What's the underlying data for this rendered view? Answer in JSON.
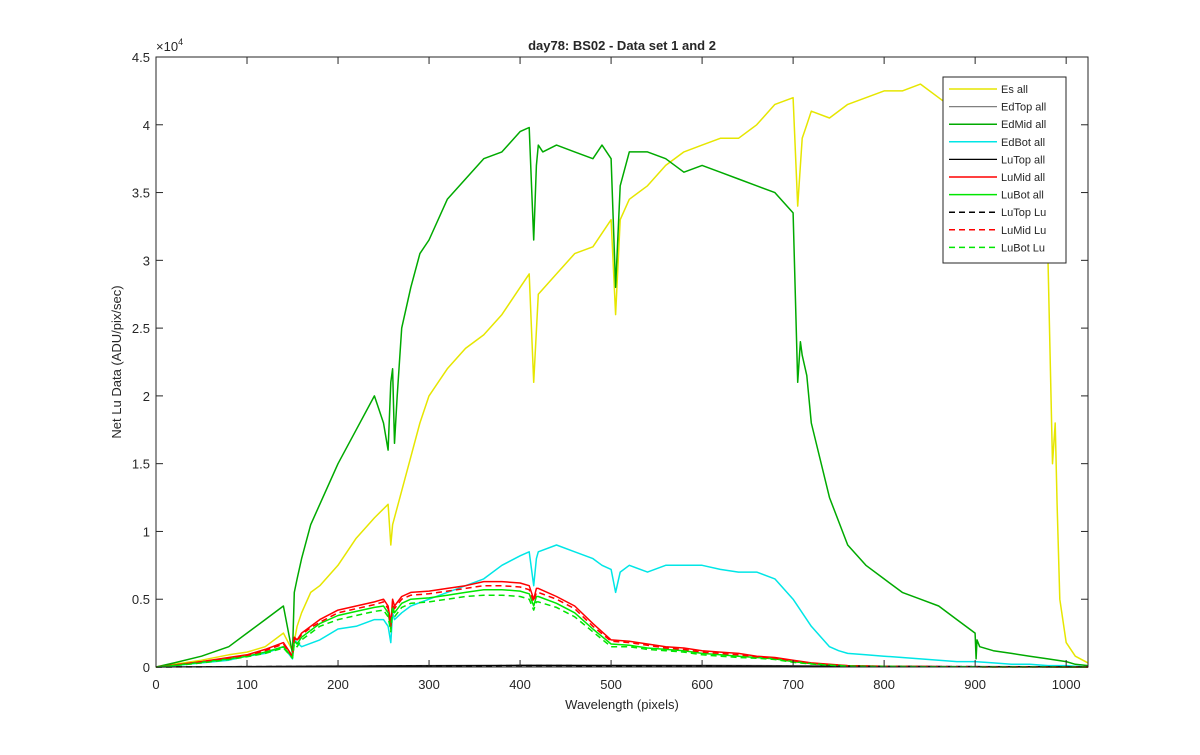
{
  "chart_data": {
    "type": "line",
    "title": "day78: BS02 - Data set 1 and 2",
    "xlabel": "Wavelength (pixels)",
    "ylabel": "Net Lu Data (ADU/pix/sec)",
    "xlim": [
      0,
      1024
    ],
    "ylim": [
      0,
      45000
    ],
    "x_ticks": [
      "0",
      "100",
      "200",
      "300",
      "400",
      "500",
      "600",
      "700",
      "800",
      "900",
      "1000"
    ],
    "y_ticks": [
      "0",
      "0.5",
      "1",
      "1.5",
      "2",
      "2.5",
      "3",
      "3.5",
      "4",
      "4.5"
    ],
    "y_exponent_base": "×10",
    "y_exponent": "4",
    "grid": false,
    "legend_position": "top-right",
    "series": [
      {
        "name": "Es  all",
        "color": "#e6e600",
        "dash": "solid",
        "width": 1.5,
        "x": [
          0,
          20,
          50,
          80,
          100,
          120,
          140,
          150,
          155,
          160,
          170,
          180,
          200,
          220,
          240,
          255,
          258,
          260,
          270,
          280,
          290,
          300,
          320,
          340,
          360,
          380,
          400,
          410,
          415,
          420,
          440,
          460,
          480,
          500,
          505,
          510,
          520,
          540,
          560,
          580,
          600,
          620,
          640,
          660,
          680,
          700,
          705,
          710,
          715,
          720,
          740,
          760,
          780,
          800,
          820,
          840,
          860,
          880,
          900,
          920,
          940,
          960,
          975,
          980,
          983,
          985,
          988,
          990,
          993,
          1000,
          1010,
          1024
        ],
        "y": [
          0,
          200,
          500,
          900,
          1100,
          1500,
          2500,
          1200,
          3000,
          4000,
          5500,
          6000,
          7500,
          9500,
          11000,
          12000,
          9000,
          10500,
          13000,
          15500,
          18000,
          20000,
          22000,
          23500,
          24500,
          26000,
          28000,
          29000,
          21000,
          27500,
          29000,
          30500,
          31000,
          33000,
          26000,
          33000,
          34500,
          35500,
          37000,
          38000,
          38500,
          39000,
          39000,
          40000,
          41500,
          42000,
          34000,
          39000,
          40000,
          41000,
          40500,
          41500,
          42000,
          42500,
          42500,
          43000,
          42000,
          41000,
          41500,
          40500,
          41500,
          41000,
          37000,
          30000,
          21000,
          15000,
          18000,
          12000,
          5000,
          1800,
          800,
          300
        ]
      },
      {
        "name": "EdTop  all",
        "color": "#808080",
        "dash": "solid",
        "width": 1.2,
        "x": [
          0,
          200,
          400,
          600,
          800,
          1024
        ],
        "y": [
          0,
          80,
          150,
          130,
          60,
          20
        ]
      },
      {
        "name": "EdMid  all",
        "color": "#00aa00",
        "dash": "solid",
        "width": 1.5,
        "x": [
          0,
          20,
          50,
          80,
          100,
          120,
          140,
          150,
          152,
          155,
          160,
          170,
          180,
          200,
          220,
          240,
          250,
          255,
          258,
          260,
          262,
          265,
          270,
          280,
          290,
          300,
          320,
          340,
          360,
          380,
          400,
          410,
          415,
          418,
          420,
          425,
          440,
          460,
          480,
          490,
          500,
          505,
          510,
          520,
          540,
          560,
          580,
          600,
          620,
          640,
          660,
          680,
          700,
          705,
          708,
          710,
          715,
          720,
          740,
          760,
          780,
          800,
          820,
          840,
          860,
          880,
          900,
          901,
          902,
          905,
          920,
          940,
          960,
          980,
          1000,
          1010,
          1024
        ],
        "y": [
          0,
          300,
          800,
          1500,
          2500,
          3500,
          4500,
          1000,
          5500,
          6500,
          8000,
          10500,
          12000,
          15000,
          17500,
          20000,
          18000,
          16000,
          21000,
          22000,
          16500,
          20000,
          25000,
          28000,
          30500,
          31500,
          34500,
          36000,
          37500,
          38000,
          39500,
          39800,
          31500,
          37000,
          38500,
          38000,
          38500,
          38000,
          37500,
          38500,
          37500,
          28000,
          35500,
          38000,
          38000,
          37500,
          36500,
          37000,
          36500,
          36000,
          35500,
          35000,
          33500,
          21000,
          24000,
          23000,
          21500,
          18000,
          12500,
          9000,
          7500,
          6500,
          5500,
          5000,
          4500,
          3500,
          2500,
          600,
          2000,
          1500,
          1200,
          1000,
          800,
          600,
          400,
          200,
          100
        ]
      },
      {
        "name": "EdBot  all",
        "color": "#00e6e6",
        "dash": "solid",
        "width": 1.5,
        "x": [
          0,
          20,
          50,
          80,
          100,
          120,
          140,
          150,
          152,
          155,
          160,
          180,
          200,
          220,
          240,
          250,
          255,
          258,
          260,
          262,
          270,
          280,
          300,
          320,
          340,
          360,
          380,
          400,
          410,
          415,
          418,
          420,
          440,
          460,
          480,
          490,
          500,
          505,
          510,
          520,
          540,
          560,
          580,
          600,
          620,
          640,
          660,
          680,
          700,
          720,
          740,
          750,
          760,
          780,
          800,
          820,
          840,
          860,
          880,
          900,
          920,
          940,
          960,
          980,
          1000,
          1010,
          1024
        ],
        "y": [
          0,
          100,
          300,
          500,
          800,
          1000,
          1500,
          600,
          2000,
          1800,
          1500,
          2000,
          2800,
          3000,
          3500,
          3500,
          3000,
          1800,
          4000,
          3500,
          4000,
          4500,
          5000,
          5500,
          6000,
          6500,
          7500,
          8200,
          8500,
          6000,
          8000,
          8500,
          9000,
          8500,
          8000,
          7500,
          7200,
          5500,
          7000,
          7500,
          7000,
          7500,
          7500,
          7500,
          7200,
          7000,
          7000,
          6500,
          5000,
          3000,
          1500,
          1200,
          1000,
          900,
          800,
          700,
          600,
          500,
          400,
          400,
          300,
          200,
          200,
          100,
          100,
          50,
          0
        ]
      },
      {
        "name": "LuTop  all",
        "color": "#000000",
        "dash": "solid",
        "width": 1.2,
        "x": [
          0,
          200,
          400,
          600,
          800,
          1024
        ],
        "y": [
          0,
          60,
          110,
          90,
          40,
          10
        ]
      },
      {
        "name": "LuMid  all",
        "color": "#ff0000",
        "dash": "solid",
        "width": 1.5,
        "x": [
          0,
          20,
          50,
          80,
          100,
          120,
          140,
          150,
          152,
          155,
          160,
          170,
          180,
          200,
          220,
          240,
          250,
          255,
          258,
          260,
          262,
          270,
          280,
          300,
          320,
          340,
          360,
          380,
          400,
          410,
          415,
          418,
          420,
          440,
          460,
          480,
          500,
          520,
          540,
          560,
          580,
          600,
          620,
          640,
          660,
          680,
          700,
          720,
          740,
          760,
          780,
          800,
          820,
          840,
          860,
          880,
          900,
          920,
          940,
          960,
          980,
          1000,
          1024
        ],
        "y": [
          0,
          150,
          400,
          700,
          900,
          1300,
          1800,
          800,
          2200,
          2000,
          2500,
          3000,
          3500,
          4200,
          4500,
          4800,
          5000,
          4500,
          3200,
          5000,
          4500,
          5200,
          5500,
          5600,
          5800,
          6000,
          6300,
          6300,
          6200,
          6000,
          5000,
          5800,
          5800,
          5200,
          4500,
          3200,
          2000,
          1900,
          1700,
          1500,
          1400,
          1200,
          1100,
          1000,
          800,
          700,
          500,
          300,
          200,
          100,
          80,
          60,
          50,
          40,
          30,
          20,
          20,
          10,
          10,
          5,
          5,
          0,
          0
        ]
      },
      {
        "name": "LuBot  all",
        "color": "#00e600",
        "dash": "solid",
        "width": 1.5,
        "x": [
          0,
          20,
          50,
          80,
          100,
          120,
          140,
          150,
          152,
          155,
          160,
          170,
          180,
          200,
          220,
          240,
          250,
          255,
          258,
          260,
          262,
          270,
          280,
          300,
          320,
          340,
          360,
          380,
          400,
          410,
          415,
          418,
          420,
          440,
          460,
          480,
          500,
          520,
          540,
          560,
          580,
          600,
          620,
          640,
          660,
          680,
          700,
          720,
          740,
          760,
          780,
          800,
          820,
          840,
          860,
          880,
          900,
          920,
          940,
          960,
          980,
          1000,
          1024
        ],
        "y": [
          0,
          120,
          350,
          600,
          800,
          1100,
          1500,
          700,
          1900,
          1700,
          2200,
          2700,
          3200,
          3800,
          4100,
          4400,
          4500,
          4000,
          2800,
          4500,
          4000,
          4700,
          5000,
          5100,
          5300,
          5500,
          5700,
          5700,
          5600,
          5400,
          4500,
          5200,
          5200,
          4700,
          4000,
          2800,
          1700,
          1600,
          1400,
          1300,
          1200,
          1000,
          900,
          800,
          700,
          600,
          400,
          250,
          150,
          80,
          60,
          50,
          40,
          30,
          20,
          15,
          15,
          10,
          8,
          5,
          5,
          0,
          0
        ]
      },
      {
        "name": "LuTop  Lu",
        "color": "#000000",
        "dash": "dashed",
        "width": 1.5,
        "x": [
          0,
          200,
          400,
          600,
          800,
          1024
        ],
        "y": [
          0,
          50,
          100,
          80,
          35,
          10
        ]
      },
      {
        "name": "LuMid  Lu",
        "color": "#ff0000",
        "dash": "dashed",
        "width": 1.5,
        "x": [
          0,
          20,
          50,
          80,
          100,
          120,
          140,
          150,
          152,
          155,
          160,
          170,
          180,
          200,
          220,
          240,
          250,
          255,
          258,
          260,
          262,
          270,
          280,
          300,
          320,
          340,
          360,
          380,
          400,
          410,
          415,
          418,
          420,
          440,
          460,
          480,
          500,
          520,
          540,
          560,
          580,
          600,
          620,
          640,
          660,
          680,
          700,
          720,
          740,
          760,
          780,
          800,
          820,
          840,
          860,
          880,
          900,
          920,
          940,
          960,
          980,
          1000,
          1024
        ],
        "y": [
          0,
          140,
          380,
          650,
          850,
          1200,
          1700,
          750,
          2100,
          1900,
          2400,
          2900,
          3300,
          4000,
          4300,
          4600,
          4800,
          4300,
          3000,
          4800,
          4300,
          5000,
          5300,
          5400,
          5600,
          5800,
          6000,
          6000,
          5900,
          5700,
          4800,
          5500,
          5500,
          5000,
          4300,
          3000,
          1900,
          1800,
          1600,
          1400,
          1300,
          1100,
          1000,
          900,
          750,
          650,
          450,
          280,
          180,
          90,
          70,
          55,
          45,
          35,
          25,
          18,
          18,
          10,
          9,
          5,
          5,
          0,
          0
        ]
      },
      {
        "name": "LuBot  Lu",
        "color": "#00e600",
        "dash": "dashed",
        "width": 1.5,
        "x": [
          0,
          20,
          50,
          80,
          100,
          120,
          140,
          150,
          152,
          155,
          160,
          170,
          180,
          200,
          220,
          240,
          250,
          255,
          258,
          260,
          262,
          270,
          280,
          300,
          320,
          340,
          360,
          380,
          400,
          410,
          415,
          418,
          420,
          440,
          460,
          480,
          500,
          520,
          540,
          560,
          580,
          600,
          620,
          640,
          660,
          680,
          700,
          720,
          740,
          760,
          780,
          800,
          820,
          840,
          860,
          880,
          900,
          920,
          940,
          960,
          980,
          1000,
          1024
        ],
        "y": [
          0,
          100,
          300,
          550,
          750,
          1000,
          1400,
          650,
          1700,
          1500,
          2000,
          2500,
          3000,
          3500,
          3800,
          4100,
          4200,
          3700,
          2600,
          4200,
          3700,
          4400,
          4700,
          4800,
          5000,
          5200,
          5300,
          5300,
          5200,
          5000,
          4200,
          4800,
          4800,
          4400,
          3700,
          2600,
          1500,
          1500,
          1300,
          1200,
          1100,
          900,
          800,
          700,
          650,
          550,
          350,
          220,
          130,
          70,
          50,
          45,
          35,
          25,
          18,
          12,
          12,
          8,
          6,
          4,
          4,
          0,
          0
        ]
      }
    ]
  }
}
